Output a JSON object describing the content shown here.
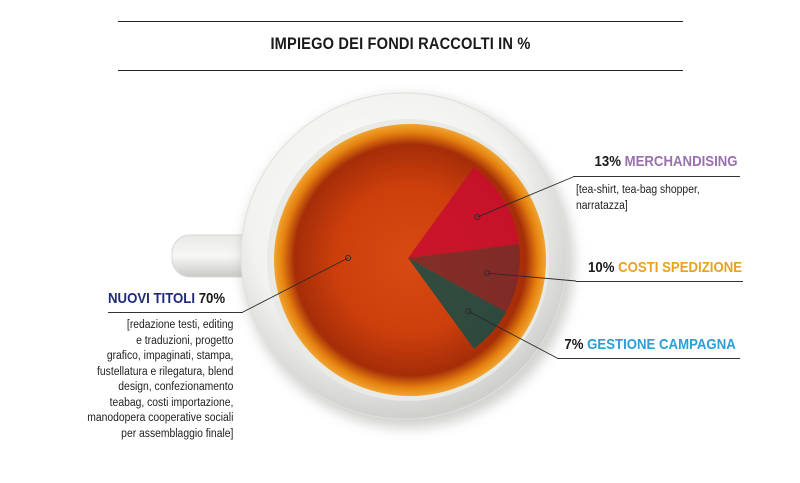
{
  "title": "IMPIEGO DEI FONDI RACCOLTI IN %",
  "colors": {
    "merch_slice": "#c8102e",
    "spedizione_slice": "#7a2a2a",
    "campagna_slice": "#1f4d44",
    "merch_text": "#9a6fae",
    "spedizione_text": "#e8a21e",
    "campagna_text": "#2a9fd6",
    "titoli_text": "#1f2a78",
    "tea": "#d4470f"
  },
  "icons": [
    "tea-cup-icon"
  ],
  "labels": {
    "merch": {
      "pct": "13%",
      "name": "MERCHANDISING",
      "desc": "[tea-shirt, tea-bag shopper,\nnarratazza]"
    },
    "spedizione": {
      "pct": "10%",
      "name": "COSTI SPEDIZIONE"
    },
    "campagna": {
      "pct": "7%",
      "name": "GESTIONE CAMPAGNA"
    },
    "titoli": {
      "name": "NUOVI TITOLI",
      "pct": "70%",
      "desc": "[redazione testi, editing\ne traduzioni, progetto\ngrafico, impaginati, stampa,\nfustellatura e rilegatura, blend\ndesign, confezionamento\nteabag, costi importazione,\nmanodopera cooperative sociali\nper assemblaggio finale]"
    }
  },
  "chart_data": {
    "type": "pie",
    "title": "IMPIEGO DEI FONDI RACCOLTI IN %",
    "unit": "%",
    "slices": [
      {
        "name": "NUOVI TITOLI",
        "value": 70
      },
      {
        "name": "MERCHANDISING",
        "value": 13
      },
      {
        "name": "COSTI SPEDIZIONE",
        "value": 10
      },
      {
        "name": "GESTIONE CAMPAGNA",
        "value": 7
      }
    ]
  }
}
